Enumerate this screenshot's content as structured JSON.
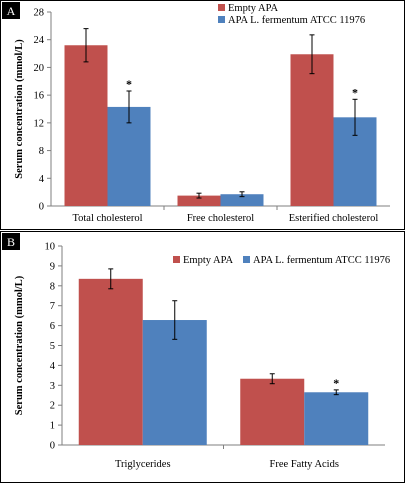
{
  "colors": {
    "empty_apa": "#c0504d",
    "apa_fermentum": "#4f81bd",
    "axis": "#7f7f7f",
    "error_bar": "#000000",
    "panel_label_bg": "#000000"
  },
  "chart_data": [
    {
      "panel_label": "A",
      "type": "bar",
      "ylabel": "Serum concentration (mmol/L)",
      "ylim": [
        0,
        28
      ],
      "yticks": [
        "0",
        "4",
        "8",
        "12",
        "16",
        "20",
        "24",
        "28"
      ],
      "categories": [
        "Total cholesterol",
        "Free cholesterol",
        "Esterified cholesterol"
      ],
      "series": [
        {
          "name": "Empty APA",
          "color": "#c0504d",
          "values": [
            23.2,
            1.5,
            21.9
          ],
          "errors": [
            2.4,
            0.35,
            2.8
          ],
          "significance": [
            "",
            "",
            ""
          ]
        },
        {
          "name": "APA L. fermentum ATCC 11976",
          "color": "#4f81bd",
          "values": [
            14.3,
            1.7,
            12.8
          ],
          "errors": [
            2.3,
            0.35,
            2.6
          ],
          "significance": [
            "*",
            "",
            "*"
          ]
        }
      ],
      "legend_position": "top-right",
      "grid": false
    },
    {
      "panel_label": "B",
      "type": "bar",
      "ylabel": "Serum concentration (mmol/L)",
      "ylim": [
        0,
        10
      ],
      "yticks": [
        "0",
        "1",
        "2",
        "3",
        "4",
        "5",
        "6",
        "7",
        "8",
        "9",
        "10"
      ],
      "categories": [
        "Triglycerides",
        "Free Fatty Acids"
      ],
      "series": [
        {
          "name": "Empty APA",
          "color": "#c0504d",
          "values": [
            8.35,
            3.33
          ],
          "errors": [
            0.5,
            0.25
          ],
          "significance": [
            "",
            ""
          ]
        },
        {
          "name": "APA L. fermentum ATCC 11976",
          "color": "#4f81bd",
          "values": [
            6.28,
            2.65
          ],
          "errors": [
            0.97,
            0.12
          ],
          "significance": [
            "",
            "*"
          ]
        }
      ],
      "legend_position": "top-right",
      "grid": false
    }
  ]
}
